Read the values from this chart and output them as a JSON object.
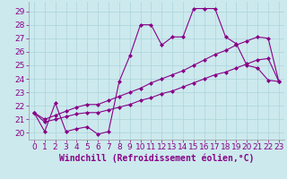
{
  "xlabel": "Windchill (Refroidissement éolien,°C)",
  "background_color": "#cce9ed",
  "grid_color": "#aad4d9",
  "line_color": "#880088",
  "x_ticks": [
    0,
    1,
    2,
    3,
    4,
    5,
    6,
    7,
    8,
    9,
    10,
    11,
    12,
    13,
    14,
    15,
    16,
    17,
    18,
    19,
    20,
    21,
    22,
    23
  ],
  "y_ticks": [
    20,
    21,
    22,
    23,
    24,
    25,
    26,
    27,
    28,
    29
  ],
  "xlim": [
    -0.5,
    23.5
  ],
  "ylim": [
    19.5,
    29.7
  ],
  "series1_y": [
    21.5,
    20.1,
    22.2,
    20.1,
    20.3,
    20.45,
    19.9,
    20.1,
    23.8,
    25.7,
    28.0,
    28.0,
    26.5,
    27.1,
    27.1,
    29.2,
    29.2,
    29.2,
    27.1,
    26.6,
    25.0,
    24.8,
    23.9,
    23.8
  ],
  "series2_y": [
    21.5,
    20.8,
    21.0,
    21.2,
    21.4,
    21.5,
    21.5,
    21.7,
    21.9,
    22.1,
    22.4,
    22.6,
    22.9,
    23.1,
    23.4,
    23.7,
    24.0,
    24.3,
    24.5,
    24.8,
    25.1,
    25.4,
    25.5,
    23.8
  ],
  "series3_y": [
    21.5,
    21.0,
    21.3,
    21.6,
    21.9,
    22.1,
    22.1,
    22.4,
    22.7,
    23.0,
    23.3,
    23.7,
    24.0,
    24.3,
    24.6,
    25.0,
    25.4,
    25.8,
    26.1,
    26.5,
    26.8,
    27.1,
    27.0,
    23.8
  ],
  "tick_fontsize": 6.5,
  "xlabel_fontsize": 7.0,
  "marker": "D",
  "marker_size": 2.0,
  "linewidth": 0.8
}
